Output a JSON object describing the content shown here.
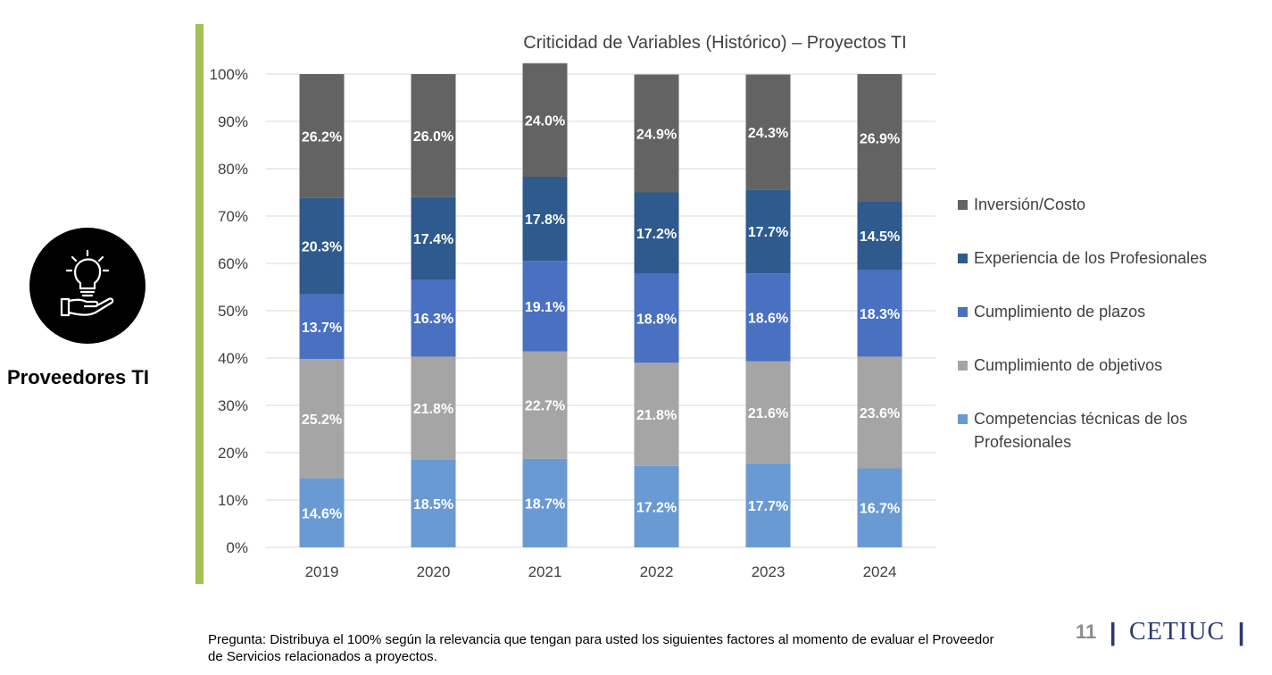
{
  "side": {
    "label": "Proveedores TI",
    "icon": "lightbulb-hand-icon"
  },
  "chart_data": {
    "type": "stacked-bar-100",
    "title": "Criticidad de Variables (Histórico) – Proyectos TI",
    "categories": [
      "2019",
      "2020",
      "2021",
      "2022",
      "2023",
      "2024"
    ],
    "y_ticks": [
      "0%",
      "10%",
      "20%",
      "30%",
      "40%",
      "50%",
      "60%",
      "70%",
      "80%",
      "90%",
      "100%"
    ],
    "ylim": [
      0,
      100
    ],
    "grid": true,
    "legend_position": "right",
    "series": [
      {
        "name": "Competencias técnicas de los Profesionales",
        "color": "#6a9ad3",
        "values": [
          14.6,
          18.5,
          18.7,
          17.2,
          17.7,
          16.7
        ],
        "labels": [
          "14.6%",
          "18.5%",
          "18.7%",
          "17.2%",
          "17.7%",
          "16.7%"
        ]
      },
      {
        "name": "Cumplimiento de objetivos",
        "color": "#a5a5a5",
        "values": [
          25.2,
          21.8,
          22.7,
          21.8,
          21.6,
          23.6
        ],
        "labels": [
          "25.2%",
          "21.8%",
          "22.7%",
          "21.8%",
          "21.6%",
          "23.6%"
        ]
      },
      {
        "name": "Cumplimiento de plazos",
        "color": "#4a70c2",
        "values": [
          13.7,
          16.3,
          19.1,
          18.8,
          18.6,
          18.3
        ],
        "labels": [
          "13.7%",
          "16.3%",
          "19.1%",
          "18.8%",
          "18.6%",
          "18.3%"
        ]
      },
      {
        "name": "Experiencia de los Profesionales",
        "color": "#2e5a8e",
        "values": [
          20.3,
          17.4,
          17.8,
          17.2,
          17.7,
          14.5
        ],
        "labels": [
          "20.3%",
          "17.4%",
          "17.8%",
          "17.2%",
          "17.7%",
          "14.5%"
        ]
      },
      {
        "name": "Inversión/Costo",
        "color": "#636363",
        "values": [
          26.2,
          26.0,
          24.0,
          24.9,
          24.3,
          26.9
        ],
        "labels": [
          "26.2%",
          "26.0%",
          "24.0%",
          "24.9%",
          "24.3%",
          "26.9%"
        ]
      }
    ]
  },
  "legend": [
    {
      "label": "Inversión/Costo",
      "color": "#636363"
    },
    {
      "label": "Experiencia de los Profesionales",
      "color": "#2e5a8e"
    },
    {
      "label": "Cumplimiento de plazos",
      "color": "#4a70c2"
    },
    {
      "label": "Cumplimiento de objetivos",
      "color": "#a5a5a5"
    },
    {
      "label": "Competencias técnicas de los Profesionales",
      "color": "#6a9ad3"
    }
  ],
  "question": "Pregunta: Distribuya el 100% según la relevancia que tengan para usted los siguientes factores al momento de evaluar el Proveedor de Servicios relacionados a proyectos.",
  "footer": {
    "page": "11",
    "separator": "|",
    "brand": "CETIUC"
  }
}
